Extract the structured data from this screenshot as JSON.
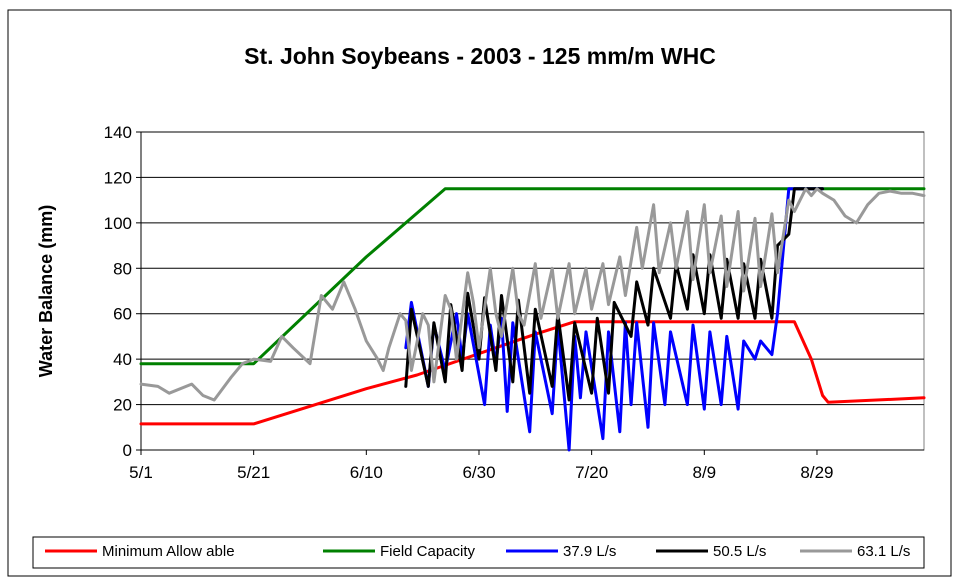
{
  "chart_data": {
    "type": "line",
    "title": "St. John Soybeans - 2003 - 125 mm/m WHC",
    "xlabel": "",
    "ylabel": "Water Balance (mm)",
    "ylim": [
      0,
      140
    ],
    "yticks": [
      "0",
      "20",
      "40",
      "60",
      "80",
      "100",
      "120",
      "140"
    ],
    "xlim": [
      "5/1",
      "9/17"
    ],
    "xticks": [
      "5/1",
      "5/21",
      "6/10",
      "6/30",
      "7/20",
      "8/9",
      "8/29"
    ],
    "grid": "horizontal",
    "legend_position": "bottom",
    "series": [
      {
        "name": "Minimum Allow able",
        "color": "#ff0000",
        "x": [
          "5/1",
          "5/21",
          "6/10",
          "6/19",
          "7/10",
          "7/17",
          "8/25",
          "8/28",
          "8/30",
          "8/31",
          "9/17"
        ],
        "y": [
          11.5,
          11.5,
          27,
          33,
          51,
          56.5,
          56.5,
          40,
          24,
          21,
          23
        ]
      },
      {
        "name": "Field Capacity",
        "color": "#008000",
        "x": [
          "5/1",
          "5/21",
          "6/10",
          "6/24",
          "9/17"
        ],
        "y": [
          38,
          38,
          85,
          115,
          115
        ]
      },
      {
        "name": "37.9 L/s",
        "color": "#0000ff",
        "x": [
          "6/17",
          "6/18",
          "6/21",
          "6/22",
          "6/24",
          "6/26",
          "6/27",
          "6/28",
          "7/1",
          "7/2",
          "7/3",
          "7/4",
          "7/5",
          "7/6",
          "7/9",
          "7/10",
          "7/13",
          "7/14",
          "7/16",
          "7/17",
          "7/18",
          "7/19",
          "7/22",
          "7/23",
          "7/25",
          "7/26",
          "7/27",
          "7/28",
          "7/30",
          "7/31",
          "8/2",
          "8/3",
          "8/6",
          "8/7",
          "8/9",
          "8/10",
          "8/12",
          "8/13",
          "8/15",
          "8/16",
          "8/18",
          "8/19",
          "8/21",
          "8/22",
          "8/24",
          "8/25",
          "8/27",
          "8/28",
          "8/29",
          "8/30"
        ],
        "y": [
          45,
          65,
          28,
          55,
          35,
          60,
          40,
          60,
          20,
          55,
          38,
          58,
          17,
          56,
          8,
          52,
          16,
          55,
          0,
          50,
          23,
          52,
          5,
          52,
          8,
          56,
          20,
          56,
          10,
          56,
          20,
          52,
          20,
          55,
          18,
          52,
          20,
          50,
          18,
          48,
          40,
          48,
          42,
          60,
          115,
          115,
          115,
          115,
          115,
          115
        ]
      },
      {
        "name": "50.5 L/s",
        "color": "#000000",
        "x": [
          "6/17",
          "6/18",
          "6/21",
          "6/22",
          "6/24",
          "6/25",
          "6/27",
          "6/28",
          "6/30",
          "7/1",
          "7/3",
          "7/4",
          "7/6",
          "7/7",
          "7/9",
          "7/10",
          "7/13",
          "7/14",
          "7/16",
          "7/17",
          "7/20",
          "7/21",
          "7/23",
          "7/24",
          "7/27",
          "7/28",
          "7/30",
          "7/31",
          "8/3",
          "8/4",
          "8/6",
          "8/7",
          "8/9",
          "8/10",
          "8/12",
          "8/13",
          "8/15",
          "8/16",
          "8/18",
          "8/19",
          "8/21",
          "8/22",
          "8/24",
          "8/25",
          "8/27",
          "8/28",
          "8/29",
          "8/30"
        ],
        "y": [
          28,
          62,
          28,
          56,
          30,
          64,
          35,
          69,
          40,
          67,
          35,
          68,
          30,
          66,
          25,
          62,
          28,
          60,
          22,
          56,
          25,
          58,
          25,
          65,
          50,
          74,
          55,
          80,
          58,
          82,
          62,
          86,
          60,
          86,
          58,
          84,
          58,
          82,
          58,
          84,
          58,
          90,
          95,
          115,
          115,
          115,
          115,
          115
        ]
      },
      {
        "name": "63.1 L/s",
        "color": "#999999",
        "x": [
          "5/1",
          "5/4",
          "5/6",
          "5/10",
          "5/12",
          "5/14",
          "5/17",
          "5/19",
          "5/21",
          "5/24",
          "5/26",
          "5/28",
          "5/31",
          "6/2",
          "6/4",
          "6/6",
          "6/8",
          "6/10",
          "6/12",
          "6/13",
          "6/14",
          "6/16",
          "6/17",
          "6/18",
          "6/20",
          "6/21",
          "6/22",
          "6/24",
          "6/25",
          "6/26",
          "6/28",
          "6/29",
          "6/30",
          "7/2",
          "7/3",
          "7/4",
          "7/6",
          "7/7",
          "7/8",
          "7/10",
          "7/11",
          "7/13",
          "7/14",
          "7/16",
          "7/17",
          "7/19",
          "7/20",
          "7/22",
          "7/23",
          "7/25",
          "7/26",
          "7/28",
          "7/29",
          "7/31",
          "8/1",
          "8/3",
          "8/4",
          "8/6",
          "8/7",
          "8/9",
          "8/10",
          "8/12",
          "8/13",
          "8/15",
          "8/16",
          "8/18",
          "8/19",
          "8/21",
          "8/22",
          "8/24",
          "8/25",
          "8/27",
          "8/28",
          "8/29",
          "8/30",
          "9/1",
          "9/3",
          "9/5",
          "9/7",
          "9/9",
          "9/11",
          "9/13",
          "9/15",
          "9/17"
        ],
        "y": [
          29,
          28,
          25,
          29,
          24,
          22,
          32,
          38,
          40,
          39,
          50,
          45,
          38,
          68,
          62,
          74,
          62,
          48,
          40,
          35,
          45,
          60,
          57,
          35,
          60,
          55,
          30,
          68,
          62,
          40,
          78,
          65,
          45,
          80,
          60,
          50,
          80,
          60,
          55,
          82,
          58,
          80,
          58,
          82,
          60,
          80,
          62,
          82,
          64,
          85,
          68,
          98,
          80,
          108,
          78,
          100,
          80,
          105,
          75,
          108,
          78,
          103,
          72,
          105,
          70,
          102,
          72,
          104,
          78,
          110,
          105,
          115,
          112,
          115,
          113,
          110,
          103,
          100,
          108,
          113,
          114,
          113,
          113,
          112
        ]
      }
    ]
  }
}
